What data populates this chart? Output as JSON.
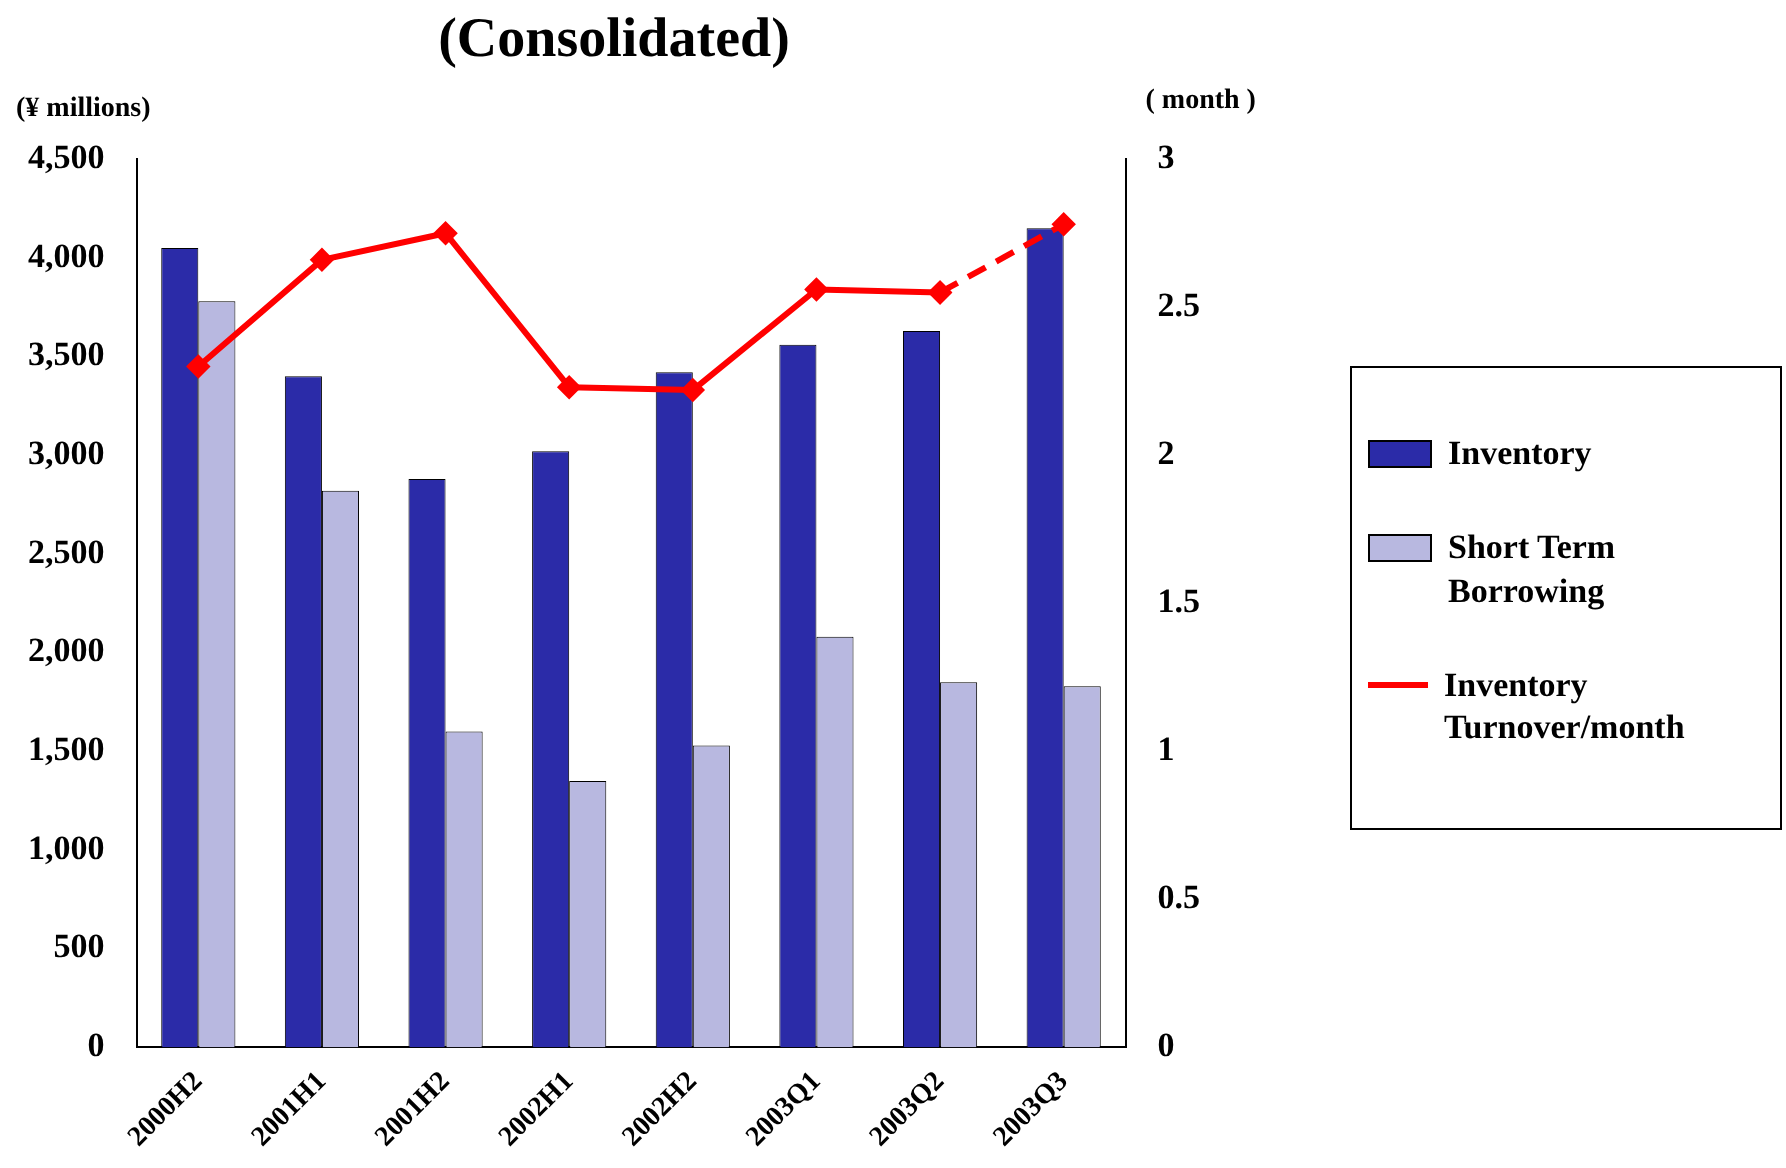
{
  "chart_data": {
    "type": "bar",
    "title": "(Consolidated)",
    "ylabel": "(¥ millions)",
    "y2label": "( month )",
    "categories": [
      "2000H2",
      "2001H1",
      "2001H2",
      "2002H1",
      "2002H2",
      "2003Q1",
      "2003Q2",
      "2003Q3"
    ],
    "series": [
      {
        "name": "Inventory",
        "color": "#2b2ba8",
        "values": [
          4050,
          3400,
          2880,
          3020,
          3420,
          3560,
          3630,
          4150
        ]
      },
      {
        "name": "Short Term Borrowing",
        "color": "#b8b8e0",
        "values": [
          3780,
          2820,
          1600,
          1350,
          1530,
          2080,
          1850,
          1830
        ]
      },
      {
        "name": "Inventory Turnover/month",
        "type": "line",
        "axis": "y2",
        "color": "#ff0000",
        "marker": "diamond",
        "line_style": "solid",
        "values": [
          2.3,
          2.66,
          2.75,
          2.23,
          2.22,
          2.56,
          2.55,
          null
        ]
      },
      {
        "type": "line",
        "axis": "y2",
        "color": "#ff0000",
        "marker": "diamond",
        "line_style": "dashed",
        "values": [
          null,
          null,
          null,
          null,
          null,
          null,
          2.55,
          2.78
        ]
      }
    ],
    "ylim": [
      0,
      4500
    ],
    "yticks": [
      {
        "value": 0,
        "label": "0"
      },
      {
        "value": 500,
        "label": "500"
      },
      {
        "value": 1000,
        "label": "1,000"
      },
      {
        "value": 1500,
        "label": "1,500"
      },
      {
        "value": 2000,
        "label": "2,000"
      },
      {
        "value": 2500,
        "label": "2,500"
      },
      {
        "value": 3000,
        "label": "3,000"
      },
      {
        "value": 3500,
        "label": "3,500"
      },
      {
        "value": 4000,
        "label": "4,000"
      },
      {
        "value": 4500,
        "label": "4,500"
      }
    ],
    "y2lim": [
      0,
      3
    ],
    "y2ticks": [
      0,
      0.5,
      1,
      1.5,
      2,
      2.5,
      3
    ],
    "grid": false,
    "legend": "right"
  }
}
